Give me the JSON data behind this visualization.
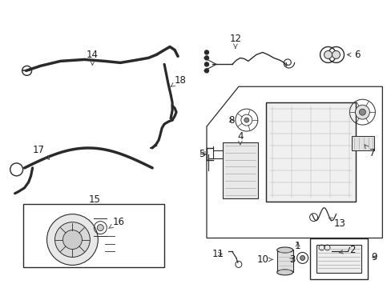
{
  "bg_color": "#ffffff",
  "line_color": "#2a2a2a",
  "label_color": "#1a1a1a",
  "figsize": [
    4.89,
    3.6
  ],
  "dpi": 100
}
